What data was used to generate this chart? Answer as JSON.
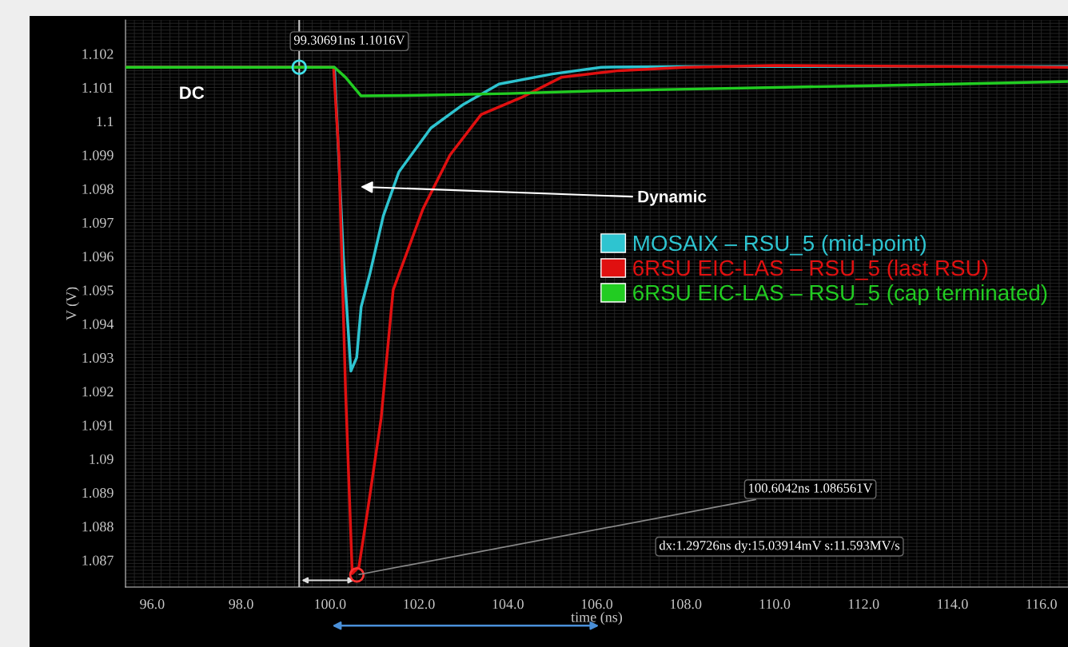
{
  "chart_data": {
    "type": "line",
    "xlabel": "time (ns)",
    "ylabel": "V (V)",
    "xlim": [
      95.4,
      116.6
    ],
    "ylim": [
      1.0862,
      1.103
    ],
    "xticks": [
      {
        "value": 96,
        "label": "96.0"
      },
      {
        "value": 98,
        "label": "98.0"
      },
      {
        "value": 100,
        "label": "100.0"
      },
      {
        "value": 102,
        "label": "102.0"
      },
      {
        "value": 104,
        "label": "104.0"
      },
      {
        "value": 106,
        "label": "106.0"
      },
      {
        "value": 108,
        "label": "108.0"
      },
      {
        "value": 110,
        "label": "110.0"
      },
      {
        "value": 112,
        "label": "112.0"
      },
      {
        "value": 114,
        "label": "114.0"
      },
      {
        "value": 116,
        "label": "116.0"
      }
    ],
    "yticks": [
      1.087,
      1.088,
      1.089,
      1.09,
      1.091,
      1.092,
      1.093,
      1.094,
      1.095,
      1.096,
      1.097,
      1.098,
      1.099,
      1.1,
      1.101,
      1.102
    ],
    "grid": true,
    "legend": "right",
    "line_style": "solid",
    "marker": "none",
    "series": [
      {
        "name": "MOSAIX – RSU_5 (mid-point)",
        "color": "#2ec4d0",
        "x": [
          95.4,
          100.1,
          100.3,
          100.47,
          100.6,
          100.7,
          100.9,
          101.2,
          101.55,
          102.27,
          103.0,
          103.8,
          105.0,
          106.1,
          108.0,
          116.6
        ],
        "values": [
          1.1016,
          1.1016,
          1.096,
          1.0926,
          1.093,
          1.0945,
          1.0955,
          1.0972,
          1.0985,
          1.0998,
          1.1005,
          1.1011,
          1.1014,
          1.1016,
          1.10162,
          1.10162
        ]
      },
      {
        "name": "6RSU EIC-LAS – RSU_5 (last RSU)",
        "color": "#e01010",
        "x": [
          95.4,
          100.08,
          100.2,
          100.35,
          100.5,
          100.65,
          100.85,
          101.15,
          101.42,
          102.09,
          102.7,
          103.4,
          104.3,
          105.2,
          106.5,
          108.0,
          110.0,
          116.6
        ],
        "values": [
          1.1016,
          1.1016,
          1.099,
          1.092,
          1.0866,
          1.0868,
          1.0885,
          1.0912,
          1.095,
          1.0974,
          1.099,
          1.1002,
          1.1007,
          1.1013,
          1.1015,
          1.1016,
          1.10165,
          1.1016
        ]
      },
      {
        "name": "6RSU EIC-LAS – RSU_5 (cap terminated)",
        "color": "#22cc22",
        "x": [
          95.4,
          100.1,
          100.35,
          100.7,
          102.0,
          104.0,
          106.0,
          108.0,
          110.0,
          112.0,
          114.0,
          116.6
        ],
        "values": [
          1.1016,
          1.1016,
          1.1013,
          1.10075,
          1.10077,
          1.10082,
          1.1009,
          1.10095,
          1.101,
          1.10105,
          1.1011,
          1.10118
        ]
      }
    ],
    "ref_lines": [
      {
        "axis": "x",
        "value": 99.30691,
        "color": "#c8c8c8"
      }
    ],
    "annotations": [
      {
        "text": "99.30691ns 1.1016V",
        "x": 99.30691,
        "y": 1.1016
      },
      {
        "text": "100.6042ns 1.086561V",
        "x": 100.6042,
        "y": 1.086561
      },
      "dx:1.29726ns dy:15.03914mV s:11.593MV/s",
      "DC",
      "Dynamic"
    ]
  }
}
